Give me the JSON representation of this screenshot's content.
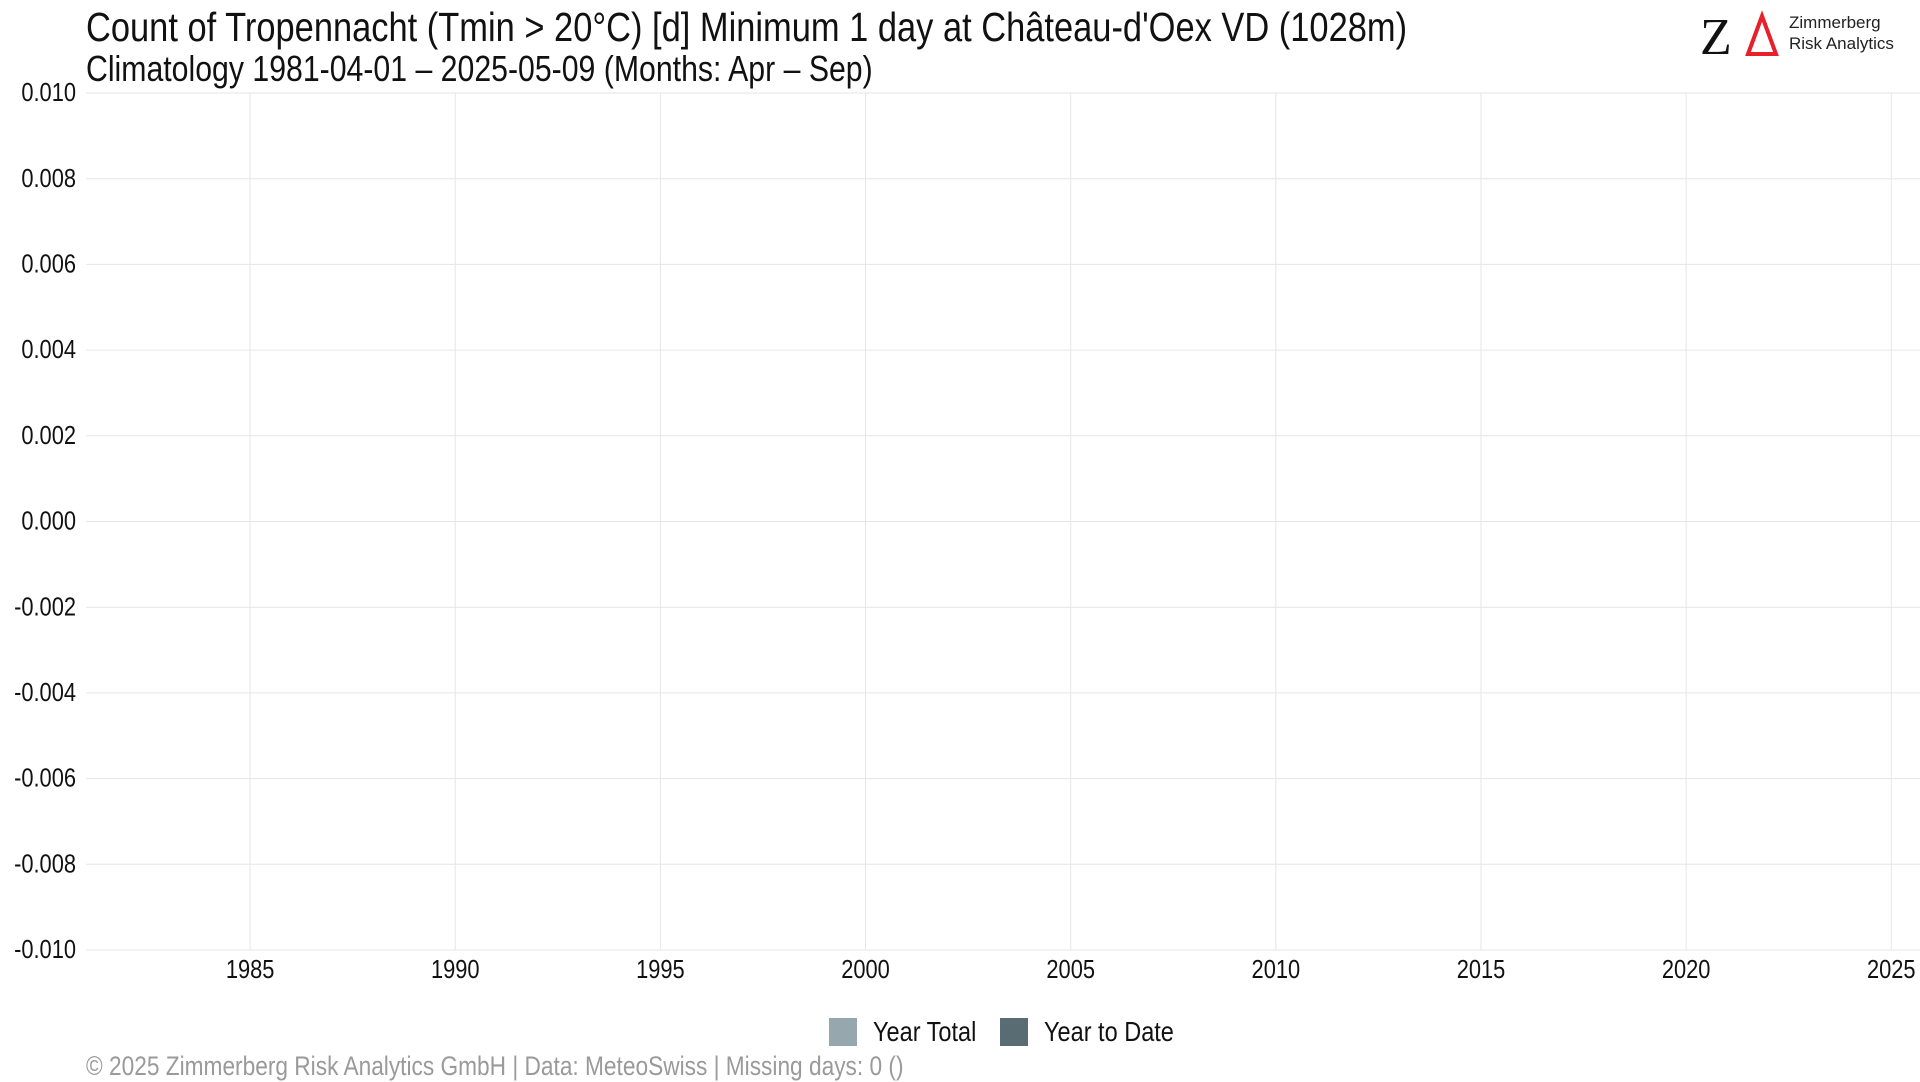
{
  "header": {
    "title": "Count of Tropennacht (Tmin > 20°C) [d] Minimum 1 day at Château-d'Oex  VD (1028m)",
    "subtitle": "Climatology 1981-04-01 – 2025-05-09 (Months: Apr – Sep)"
  },
  "logo": {
    "mark": "ZΔ",
    "line1": "Zimmerberg",
    "line2": "Risk Analytics",
    "accent_color": "#e8202a"
  },
  "chart_data": {
    "type": "bar",
    "title": "Count of Tropennacht (Tmin > 20°C) [d] Minimum 1 day at Château-d'Oex  VD (1028m)",
    "subtitle": "Climatology 1981-04-01 – 2025-05-09 (Months: Apr – Sep)",
    "xlabel": "",
    "ylabel": "",
    "xlim": [
      1981,
      2025.7
    ],
    "ylim": [
      -0.01,
      0.01
    ],
    "xticks": [
      "1985",
      "1990",
      "1995",
      "2000",
      "2005",
      "2010",
      "2015",
      "2020",
      "2025"
    ],
    "yticks": [
      "0.010",
      "0.008",
      "0.006",
      "0.004",
      "0.002",
      "0.000",
      "-0.002",
      "-0.004",
      "-0.006",
      "-0.008",
      "-0.010"
    ],
    "grid": true,
    "legend_position": "bottom",
    "series": [
      {
        "name": "Year Total",
        "color": "#96a7ad",
        "values": []
      },
      {
        "name": "Year to Date",
        "color": "#5a6c73",
        "values": []
      }
    ]
  },
  "legend": {
    "items": [
      {
        "label": "Year Total",
        "color": "#96a7ad"
      },
      {
        "label": "Year to Date",
        "color": "#5a6c73"
      }
    ]
  },
  "footer": {
    "text": "©  2025 Zimmerberg Risk Analytics GmbH | Data: MeteoSwiss | Missing days: 0 ()"
  }
}
